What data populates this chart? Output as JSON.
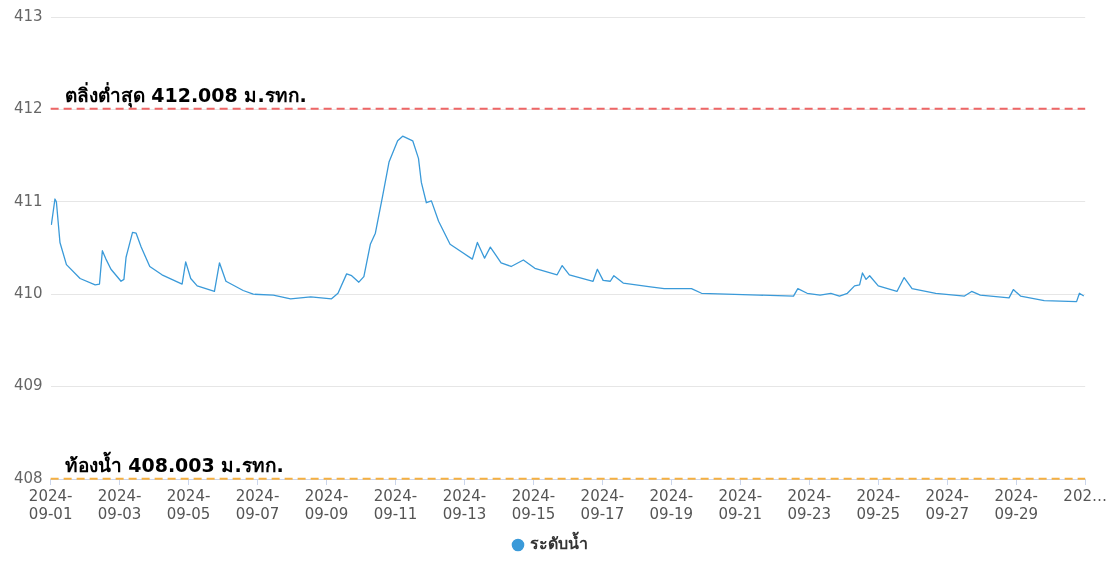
{
  "chart_data": {
    "type": "line",
    "x": [
      "2024-09-01T00:30",
      "2024-09-01T03:00",
      "2024-09-01T04:00",
      "2024-09-01T06:30",
      "2024-09-01T11:00",
      "2024-09-01T20:30",
      "2024-09-02T07:00",
      "2024-09-02T10:00",
      "2024-09-02T12:00",
      "2024-09-02T14:30",
      "2024-09-02T18:00",
      "2024-09-03T01:00",
      "2024-09-03T03:00",
      "2024-09-03T04:30",
      "2024-09-03T09:00",
      "2024-09-03T11:30",
      "2024-09-03T15:00",
      "2024-09-03T21:00",
      "2024-09-04T05:30",
      "2024-09-04T19:30",
      "2024-09-04T22:00",
      "2024-09-05T01:30",
      "2024-09-05T06:00",
      "2024-09-05T18:00",
      "2024-09-05T21:30",
      "2024-09-06T02:00",
      "2024-09-06T14:00",
      "2024-09-06T21:00",
      "2024-09-07T11:00",
      "2024-09-07T23:00",
      "2024-09-08T13:00",
      "2024-09-09T03:30",
      "2024-09-09T08:00",
      "2024-09-09T14:00",
      "2024-09-09T17:30",
      "2024-09-09T22:30",
      "2024-09-10T02:00",
      "2024-09-10T06:30",
      "2024-09-10T10:00",
      "2024-09-10T15:00",
      "2024-09-10T19:30",
      "2024-09-11T01:30",
      "2024-09-11T05:00",
      "2024-09-11T12:00",
      "2024-09-11T16:00",
      "2024-09-11T18:00",
      "2024-09-11T21:30",
      "2024-09-12T01:00",
      "2024-09-12T06:00",
      "2024-09-12T14:00",
      "2024-09-13T05:30",
      "2024-09-13T09:00",
      "2024-09-13T14:00",
      "2024-09-13T18:00",
      "2024-09-14T01:30",
      "2024-09-14T08:30",
      "2024-09-14T17:00",
      "2024-09-15T01:00",
      "2024-09-15T16:30",
      "2024-09-15T20:00",
      "2024-09-16T01:00",
      "2024-09-16T17:30",
      "2024-09-16T20:30",
      "2024-09-17T00:30",
      "2024-09-17T05:30",
      "2024-09-17T08:00",
      "2024-09-17T14:30",
      "2024-09-18T09:30",
      "2024-09-18T19:00",
      "2024-09-19T14:00",
      "2024-09-19T21:00",
      "2024-09-21T13:00",
      "2024-09-22T13:00",
      "2024-09-22T16:00",
      "2024-09-22T22:30",
      "2024-09-23T07:30",
      "2024-09-23T15:00",
      "2024-09-23T21:00",
      "2024-09-24T02:30",
      "2024-09-24T07:30",
      "2024-09-24T11:00",
      "2024-09-24T13:00",
      "2024-09-24T15:30",
      "2024-09-24T18:00",
      "2024-09-25T00:00",
      "2024-09-25T13:00",
      "2024-09-25T18:00",
      "2024-09-25T23:30",
      "2024-09-26T16:00",
      "2024-09-27T12:00",
      "2024-09-27T17:00",
      "2024-09-27T23:00",
      "2024-09-28T19:00",
      "2024-09-28T22:00",
      "2024-09-29T03:00",
      "2024-09-29T19:30",
      "2024-09-30T18:00",
      "2024-09-30T20:00",
      "2024-09-30T23:00"
    ],
    "series": [
      {
        "name": "ระดับน้ำ",
        "color": "#3a9ad9",
        "values": [
          410.75,
          411.03,
          411.0,
          410.56,
          410.32,
          410.17,
          410.1,
          410.11,
          410.47,
          410.38,
          410.27,
          410.14,
          410.16,
          410.4,
          410.67,
          410.66,
          410.51,
          410.3,
          410.21,
          410.11,
          410.35,
          410.17,
          410.09,
          410.03,
          410.34,
          410.14,
          410.04,
          410.0,
          409.99,
          409.95,
          409.97,
          409.95,
          410.01,
          410.22,
          410.2,
          410.13,
          410.19,
          410.54,
          410.66,
          411.06,
          411.43,
          411.66,
          411.71,
          411.66,
          411.47,
          411.21,
          410.99,
          411.01,
          410.79,
          410.54,
          410.38,
          410.56,
          410.39,
          410.51,
          410.34,
          410.3,
          410.37,
          410.28,
          410.21,
          410.31,
          410.21,
          410.14,
          410.27,
          410.15,
          410.14,
          410.2,
          410.12,
          410.08,
          410.06,
          410.06,
          410.01,
          409.99,
          409.98,
          410.06,
          410.01,
          409.99,
          410.01,
          409.98,
          410.01,
          410.09,
          410.1,
          410.23,
          410.16,
          410.2,
          410.09,
          410.03,
          410.18,
          410.06,
          410.01,
          409.98,
          410.03,
          409.99,
          409.96,
          410.05,
          409.98,
          409.93,
          409.92,
          410.01,
          409.98
        ]
      }
    ],
    "xlim": [
      "2024-09-01",
      "2024-10-01"
    ],
    "xticks": [
      "2024-09-01",
      "2024-09-03",
      "2024-09-05",
      "2024-09-07",
      "2024-09-09",
      "2024-09-11",
      "2024-09-13",
      "2024-09-15",
      "2024-09-17",
      "2024-09-19",
      "2024-09-21",
      "2024-09-23",
      "2024-09-25",
      "2024-09-27",
      "2024-09-29",
      {
        "value": "2024-10-01",
        "label": "202…"
      }
    ],
    "ylim": [
      408,
      413
    ],
    "yticks": [
      408,
      409,
      410,
      411,
      412,
      413
    ],
    "grid": "y",
    "legend": "bottom",
    "ref_lines": [
      {
        "axis": "y",
        "value": 412.008,
        "label": "ตลิ่งต่ำสุด 412.008 ม.รทก.",
        "color": "#ee6666",
        "line_style": "dashed"
      },
      {
        "axis": "y",
        "value": 408.003,
        "label": "ท้องน้ำ 408.003 ม.รทก.",
        "color": "#f5b041",
        "line_style": "dashed"
      }
    ]
  }
}
